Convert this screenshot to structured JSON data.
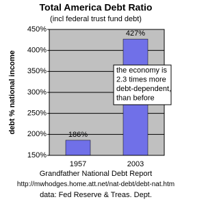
{
  "chart_data": {
    "type": "bar",
    "title": "Total America Debt Ratio",
    "subtitle": "(incl federal trust fund debt)",
    "y_label": "debt % national income",
    "categories": [
      "1957",
      "2003"
    ],
    "values": [
      186,
      427
    ],
    "value_labels": [
      "186%",
      "427%"
    ],
    "color": "#7070e8",
    "ylim": [
      150,
      450
    ],
    "yticks": [
      {
        "value": 150,
        "label": "150%"
      },
      {
        "value": 200,
        "label": "200%"
      },
      {
        "value": 250,
        "label": "250%"
      },
      {
        "value": 300,
        "label": "300%"
      },
      {
        "value": 350,
        "label": "350%"
      },
      {
        "value": 400,
        "label": "400%"
      },
      {
        "value": 450,
        "label": "450%"
      }
    ],
    "grid": true,
    "plot_background": "#c0c0c0",
    "annotation_lines": [
      "the economy is",
      "2.3 times more",
      "debt-dependent,",
      "than before"
    ],
    "footer_lines": [
      "Grandfather National Debt Report",
      "http://mwhodges.home.att.net/nat-debt/debt-nat.htm",
      "data: Fed Reserve & Treas. Dept."
    ]
  }
}
